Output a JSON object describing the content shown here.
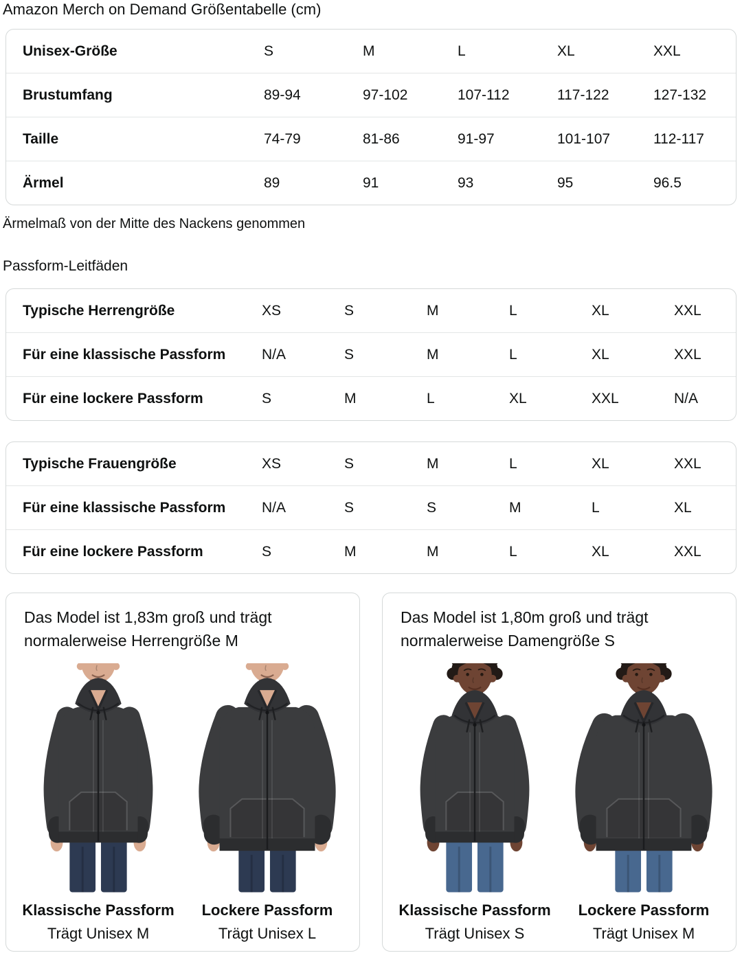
{
  "page": {
    "title": "Amazon Merch on Demand Größentabelle (cm)",
    "note": "Ärmelmaß von der Mitte des Nackens genommen",
    "fit_guides_heading": "Passform-Leitfäden",
    "border_color": "#d5d9d9",
    "text_color": "#0f1111"
  },
  "size_table": {
    "rows": [
      {
        "label": "Unisex-Größe",
        "values": [
          "S",
          "M",
          "L",
          "XL",
          "XXL"
        ]
      },
      {
        "label": "Brustumfang",
        "values": [
          "89-94",
          "97-102",
          "107-112",
          "117-122",
          "127-132"
        ]
      },
      {
        "label": "Taille",
        "values": [
          "74-79",
          "81-86",
          "91-97",
          "101-107",
          "112-117"
        ]
      },
      {
        "label": "Ärmel",
        "values": [
          "89",
          "91",
          "93",
          "95",
          "96.5"
        ]
      }
    ]
  },
  "fit_tables": [
    {
      "rows": [
        {
          "label": "Typische Herrengröße",
          "values": [
            "XS",
            "S",
            "M",
            "L",
            "XL",
            "XXL"
          ]
        },
        {
          "label": "Für eine klassische Passform",
          "values": [
            "N/A",
            "S",
            "M",
            "L",
            "XL",
            "XXL"
          ]
        },
        {
          "label": "Für eine lockere Passform",
          "values": [
            "S",
            "M",
            "L",
            "XL",
            "XXL",
            "N/A"
          ]
        }
      ]
    },
    {
      "rows": [
        {
          "label": "Typische Frauengröße",
          "values": [
            "XS",
            "S",
            "M",
            "L",
            "XL",
            "XXL"
          ]
        },
        {
          "label": "Für eine klassische Passform",
          "values": [
            "N/A",
            "S",
            "S",
            "M",
            "L",
            "XL"
          ]
        },
        {
          "label": "Für eine lockere Passform",
          "values": [
            "S",
            "M",
            "M",
            "L",
            "XL",
            "XXL"
          ]
        }
      ]
    }
  ],
  "model_cards": [
    {
      "description": "Das Model ist 1,83m groß und trägt normalerweise Herrengröße M",
      "figures": [
        {
          "fit_label": "Klassische Passform",
          "size_label": "Trägt Unisex M",
          "fit": "classic",
          "crop": "lower-face",
          "skin": "#d9ab91",
          "hair": "#8a6a4f",
          "hair_style": "short",
          "hoodie": "#3b3c3e",
          "jeans": "#2d3a52"
        },
        {
          "fit_label": "Lockere Passform",
          "size_label": "Trägt Unisex L",
          "fit": "loose",
          "crop": "lower-face",
          "skin": "#d9ab91",
          "hair": "#8a6a4f",
          "hair_style": "short",
          "hoodie": "#3b3c3e",
          "jeans": "#2d3a52"
        }
      ]
    },
    {
      "description": "Das Model ist 1,80m groß und trägt normalerweise Damengröße S",
      "figures": [
        {
          "fit_label": "Klassische Passform",
          "size_label": "Trägt Unisex S",
          "fit": "classic",
          "crop": "full-face",
          "skin": "#6e4433",
          "hair": "#221a16",
          "hair_style": "curly",
          "hoodie": "#3b3c3e",
          "jeans": "#48688f"
        },
        {
          "fit_label": "Lockere Passform",
          "size_label": "Trägt Unisex M",
          "fit": "loose",
          "crop": "full-face",
          "skin": "#6e4433",
          "hair": "#221a16",
          "hair_style": "curly",
          "hoodie": "#3b3c3e",
          "jeans": "#48688f"
        }
      ]
    }
  ]
}
